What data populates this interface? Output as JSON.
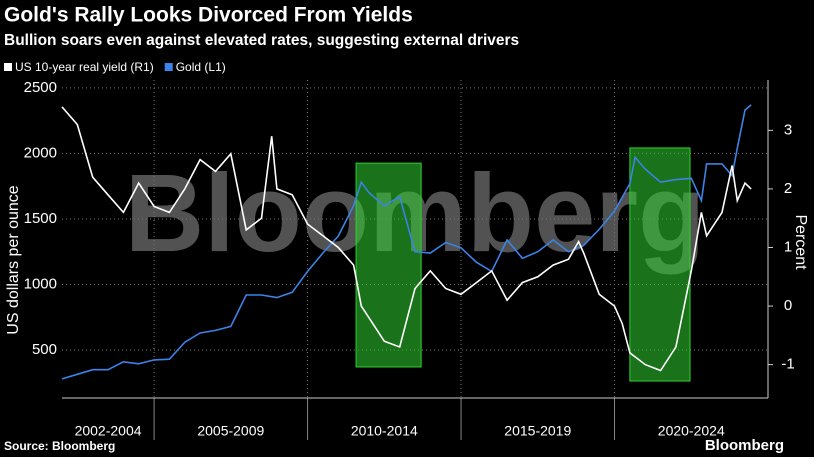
{
  "chart_data": {
    "type": "line",
    "title": "Gold's Rally Looks Divorced From Yields",
    "subtitle": "Bullion soars even against elevated rates, suggesting external drivers",
    "ylabel": "US dollars per ounce",
    "y2label": "Percent",
    "source": "Source: Bloomberg",
    "logo": "Bloomberg",
    "watermark": "Bloomberg",
    "xlim": [
      2002,
      2025
    ],
    "ylim": [
      134,
      2560
    ],
    "yticks": [
      500,
      1000,
      1500,
      2000,
      2500
    ],
    "y2lim": [
      -1.57,
      3.86
    ],
    "y2ticks": [
      -1,
      0,
      1,
      2,
      3
    ],
    "grid": true,
    "periods": [
      {
        "label": "2002-2004",
        "start": 2002,
        "end": 2005
      },
      {
        "label": "2005-2009",
        "start": 2005,
        "end": 2010
      },
      {
        "label": "2010-2014",
        "start": 2010,
        "end": 2015
      },
      {
        "label": "2015-2019",
        "start": 2015,
        "end": 2020
      },
      {
        "label": "2020-2024",
        "start": 2020,
        "end": 2025
      }
    ],
    "highlights": [
      {
        "x": [
          2011.58,
          2013.7
        ],
        "y2": [
          -1.04,
          2.44
        ],
        "color": "#2fd02f"
      },
      {
        "x": [
          2020.5,
          2022.46
        ],
        "y2": [
          -1.28,
          2.7
        ],
        "color": "#2fd02f"
      }
    ],
    "series": [
      {
        "name": "US 10-year real yield (R1)",
        "color": "#ffffff",
        "axis": "y2",
        "x": [
          2002,
          2002.5,
          2003,
          2003.5,
          2004,
          2004.5,
          2005,
          2005.5,
          2006,
          2006.5,
          2007,
          2007.5,
          2008,
          2008.5,
          2008.83,
          2009,
          2009.5,
          2010,
          2010.5,
          2011,
          2011.5,
          2011.75,
          2012,
          2012.5,
          2013,
          2013.5,
          2014,
          2014.5,
          2015,
          2015.5,
          2016,
          2016.5,
          2017,
          2017.5,
          2018,
          2018.5,
          2018.83,
          2019,
          2019.5,
          2020,
          2020.25,
          2020.5,
          2021,
          2021.5,
          2022,
          2022.5,
          2022.83,
          2023,
          2023.5,
          2023.83,
          2024,
          2024.25,
          2024.45
        ],
        "values": [
          3.4,
          3.1,
          2.2,
          1.9,
          1.6,
          2.1,
          1.7,
          1.6,
          2.0,
          2.5,
          2.3,
          2.6,
          1.3,
          1.5,
          2.9,
          2.0,
          1.9,
          1.4,
          1.2,
          1.0,
          0.7,
          0.0,
          -0.2,
          -0.6,
          -0.7,
          0.3,
          0.6,
          0.3,
          0.2,
          0.4,
          0.6,
          0.1,
          0.4,
          0.5,
          0.7,
          0.8,
          1.1,
          0.9,
          0.2,
          0.0,
          -0.3,
          -0.8,
          -1.0,
          -1.1,
          -0.7,
          0.6,
          1.6,
          1.2,
          1.6,
          2.4,
          1.8,
          2.1,
          2.0
        ]
      },
      {
        "name": "Gold (L1)",
        "color": "#3b83e6",
        "axis": "y",
        "x": [
          2002,
          2002.5,
          2003,
          2003.5,
          2004,
          2004.5,
          2005,
          2005.5,
          2006,
          2006.5,
          2007,
          2007.5,
          2008,
          2008.5,
          2009,
          2009.5,
          2010,
          2010.5,
          2011,
          2011.5,
          2011.75,
          2012,
          2012.5,
          2013,
          2013.5,
          2014,
          2014.5,
          2015,
          2015.5,
          2016,
          2016.5,
          2017,
          2017.5,
          2018,
          2018.5,
          2019,
          2019.5,
          2020,
          2020.5,
          2020.67,
          2021,
          2021.5,
          2022,
          2022.5,
          2022.83,
          2023,
          2023.5,
          2023.83,
          2024,
          2024.25,
          2024.45
        ],
        "values": [
          280,
          315,
          350,
          350,
          410,
          395,
          425,
          430,
          560,
          630,
          650,
          680,
          920,
          920,
          900,
          940,
          1100,
          1240,
          1370,
          1600,
          1780,
          1700,
          1600,
          1670,
          1250,
          1240,
          1320,
          1280,
          1170,
          1100,
          1340,
          1200,
          1250,
          1340,
          1250,
          1300,
          1420,
          1560,
          1770,
          1970,
          1880,
          1780,
          1800,
          1810,
          1640,
          1920,
          1920,
          1830,
          2040,
          2330,
          2370
        ]
      }
    ]
  }
}
